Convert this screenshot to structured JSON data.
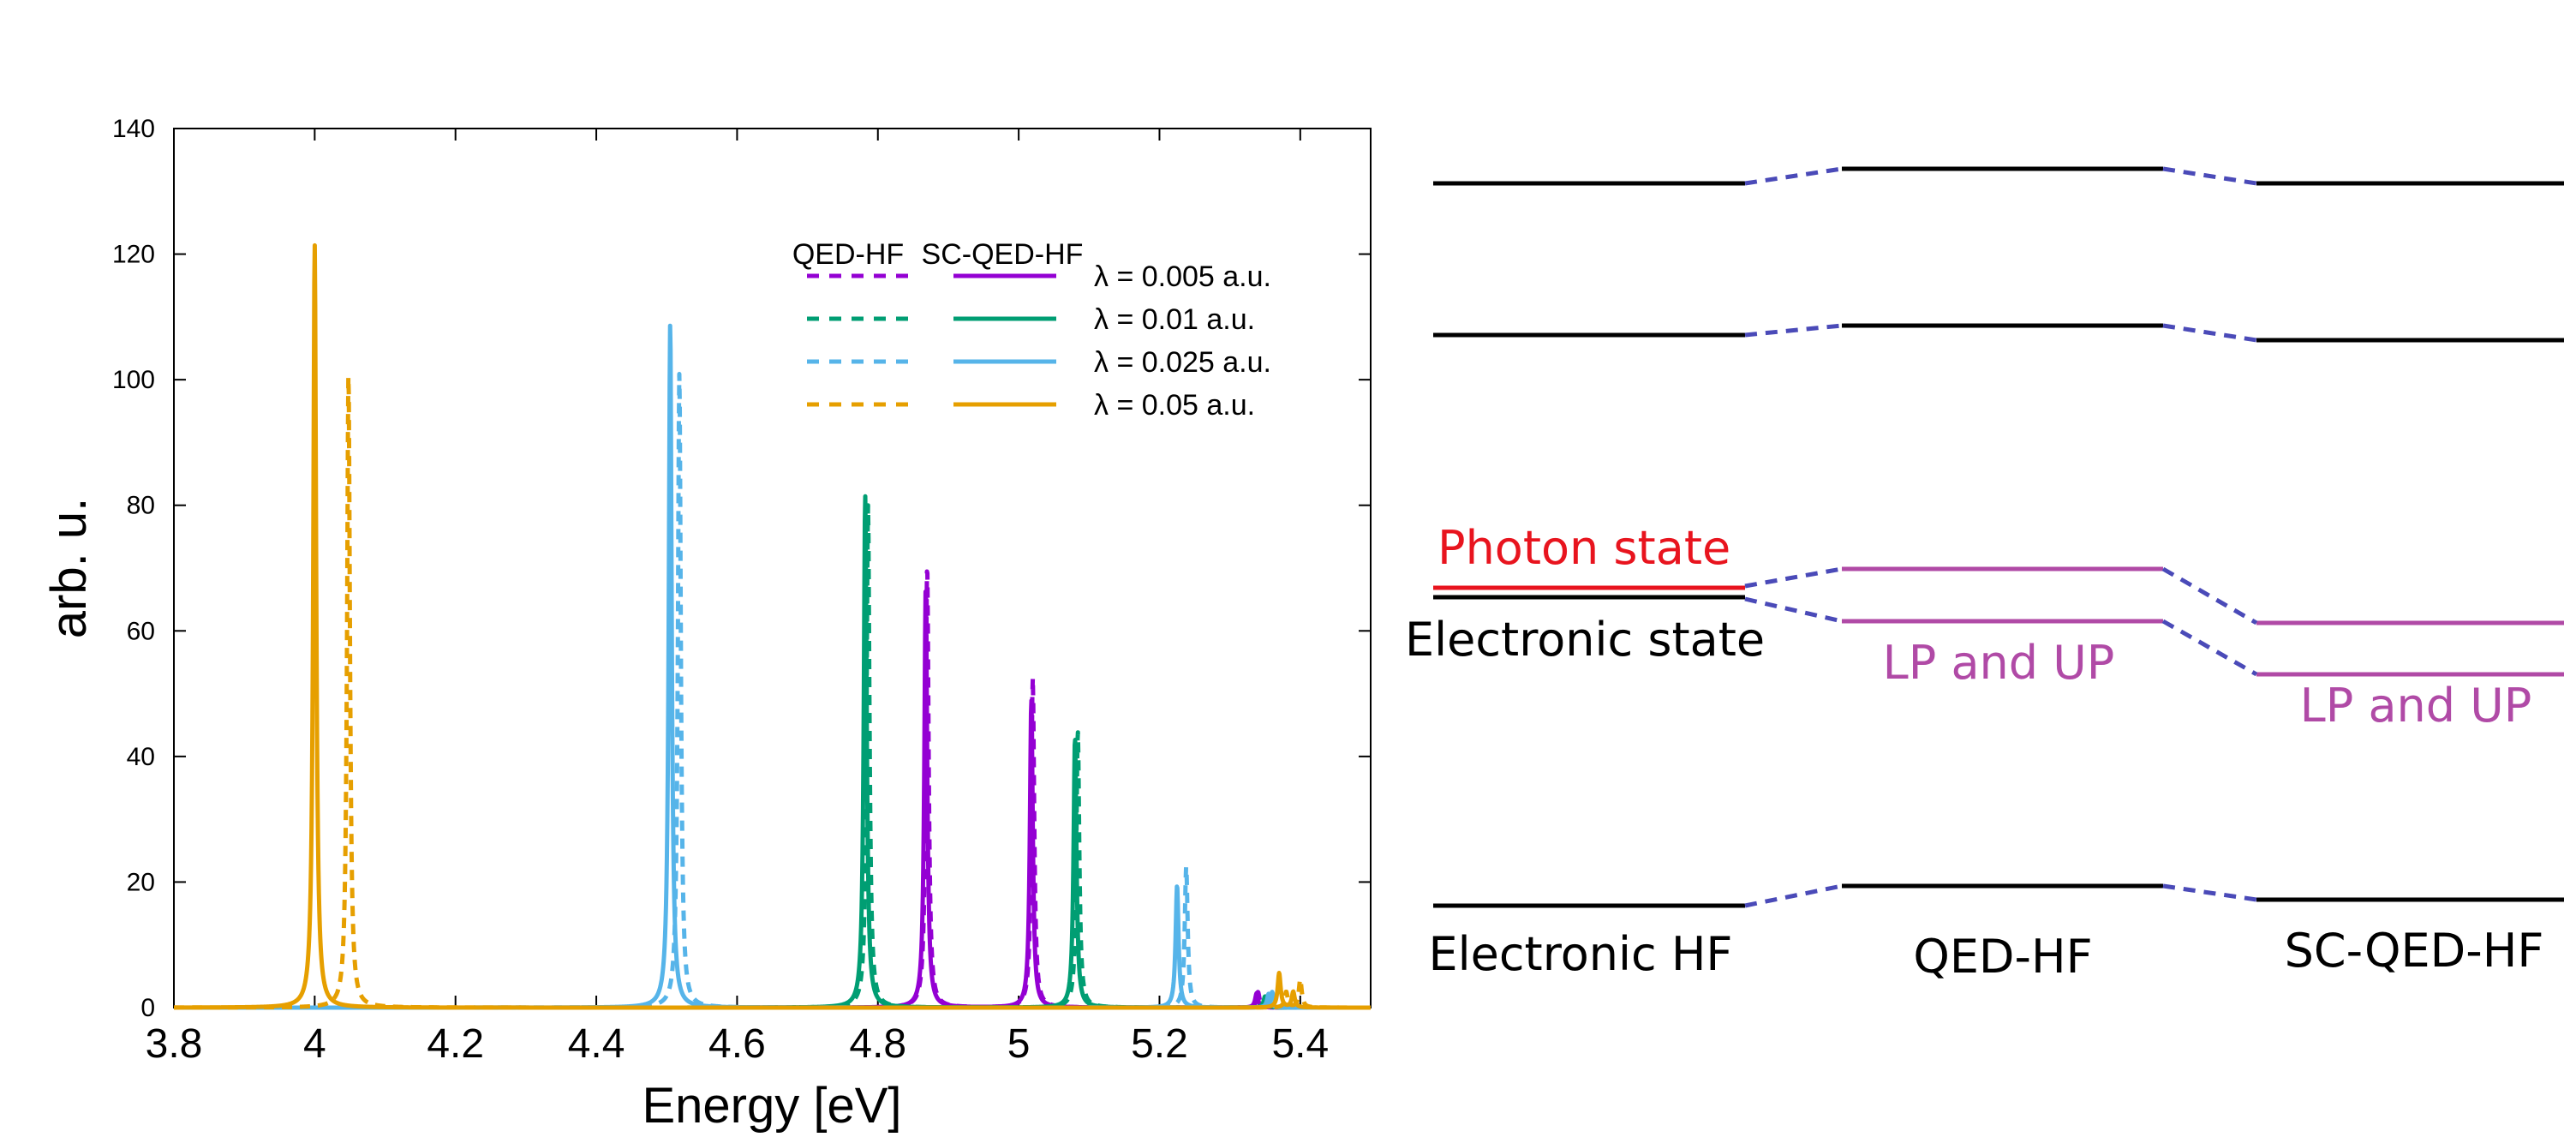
{
  "colors": {
    "purple": "#9400d3",
    "green": "#009e73",
    "blue": "#56b4e9",
    "orange": "#e69f00",
    "black": "#000000",
    "photon_red": "#e8141e",
    "lpup_magenta": "#b04aa6",
    "connector_blue": "#4a4ab8"
  },
  "chart_data": {
    "type": "line",
    "title": "",
    "xlabel": "Energy [eV]",
    "ylabel": "arb. u.",
    "xlim": [
      3.8,
      5.5
    ],
    "ylim": [
      0,
      140
    ],
    "xticks": [
      3.8,
      4,
      4.2,
      4.4,
      4.6,
      4.8,
      5,
      5.2,
      5.4
    ],
    "xtick_labels": [
      "3.8",
      "4",
      "4.2",
      "4.4",
      "4.6",
      "4.8",
      "5",
      "5.2",
      "5.4"
    ],
    "yticks": [
      0,
      20,
      40,
      60,
      80,
      100,
      120,
      140
    ],
    "ytick_labels": [
      "0",
      "20",
      "40",
      "60",
      "80",
      "100",
      "120",
      "140"
    ],
    "grid": false,
    "legend": {
      "placement": "top-right",
      "col_headers": [
        "QED-HF",
        "SC-QED-HF"
      ],
      "entries": [
        "λ = 0.005 a.u.",
        "λ = 0.01 a.u.",
        "λ = 0.025 a.u.",
        "λ = 0.05 a.u."
      ]
    },
    "peak_width_eV": 0.0025,
    "series": [
      {
        "name": "QED-HF λ = 0.005 a.u.",
        "method": "QED-HF",
        "style": "dashed",
        "color_key": "purple",
        "peaks": [
          {
            "x": 4.87,
            "y": 70.5
          },
          {
            "x": 5.02,
            "y": 52.5
          },
          {
            "x": 5.34,
            "y": 2.5
          }
        ]
      },
      {
        "name": "SC-QED-HF λ = 0.005 a.u.",
        "method": "SC-QED-HF",
        "style": "solid",
        "color_key": "purple",
        "peaks": [
          {
            "x": 4.868,
            "y": 67
          },
          {
            "x": 5.018,
            "y": 49
          },
          {
            "x": 5.338,
            "y": 2.3
          }
        ]
      },
      {
        "name": "QED-HF λ = 0.01 a.u.",
        "method": "QED-HF",
        "style": "dashed",
        "color_key": "green",
        "peaks": [
          {
            "x": 4.786,
            "y": 80
          },
          {
            "x": 5.084,
            "y": 44
          },
          {
            "x": 5.352,
            "y": 2
          }
        ]
      },
      {
        "name": "SC-QED-HF λ = 0.01 a.u.",
        "method": "SC-QED-HF",
        "style": "solid",
        "color_key": "green",
        "peaks": [
          {
            "x": 4.782,
            "y": 81.5
          },
          {
            "x": 5.08,
            "y": 43
          },
          {
            "x": 5.35,
            "y": 1.8
          }
        ]
      },
      {
        "name": "QED-HF λ = 0.025 a.u.",
        "method": "QED-HF",
        "style": "dashed",
        "color_key": "blue",
        "peaks": [
          {
            "x": 4.518,
            "y": 101
          },
          {
            "x": 5.238,
            "y": 22.5
          },
          {
            "x": 5.36,
            "y": 2.5
          }
        ]
      },
      {
        "name": "SC-QED-HF λ = 0.025 a.u.",
        "method": "SC-QED-HF",
        "style": "solid",
        "color_key": "blue",
        "peaks": [
          {
            "x": 4.505,
            "y": 109
          },
          {
            "x": 5.225,
            "y": 19.5
          },
          {
            "x": 5.355,
            "y": 2.2
          }
        ]
      },
      {
        "name": "QED-HF λ = 0.05 a.u.",
        "method": "QED-HF",
        "style": "dashed",
        "color_key": "orange",
        "peaks": [
          {
            "x": 4.048,
            "y": 101
          },
          {
            "x": 5.4,
            "y": 4.5
          },
          {
            "x": 5.38,
            "y": 2.5
          }
        ]
      },
      {
        "name": "SC-QED-HF λ = 0.05 a.u.",
        "method": "SC-QED-HF",
        "style": "solid",
        "color_key": "orange",
        "peaks": [
          {
            "x": 4.0,
            "y": 121.5
          },
          {
            "x": 5.37,
            "y": 5.5
          },
          {
            "x": 5.39,
            "y": 2.5
          }
        ]
      }
    ]
  },
  "diagram": {
    "columns": [
      "Electronic HF",
      "QED-HF",
      "SC-QED-HF"
    ],
    "labels": {
      "photon_state": "Photon state",
      "electronic_state": "Electronic state",
      "lp_up_qedhf": "LP and UP",
      "lp_up_scqedhf": "LP and UP"
    }
  }
}
